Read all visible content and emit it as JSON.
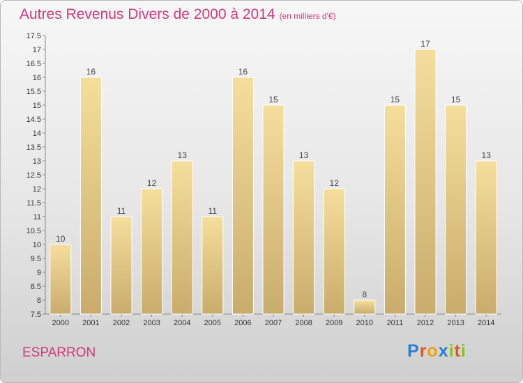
{
  "header": {
    "title": "Autres Revenus Divers de 2000 à 2014",
    "unit": "(en milliers d'€)"
  },
  "commune": "ESPARRON",
  "logo": {
    "letters": [
      "P",
      "r",
      "o",
      "x",
      "i",
      "t",
      "i"
    ],
    "colors": [
      "#2a7fd4",
      "#e8541b",
      "#f2a20e",
      "#2a7fd4",
      "#8bc21a",
      "#e8541b",
      "#8bc21a"
    ]
  },
  "chart_data": {
    "type": "bar",
    "categories": [
      "2000",
      "2001",
      "2002",
      "2003",
      "2004",
      "2005",
      "2006",
      "2007",
      "2008",
      "2009",
      "2010",
      "2011",
      "2012",
      "2013",
      "2014"
    ],
    "values": [
      10,
      16,
      11,
      12,
      13,
      11,
      16,
      15,
      13,
      12,
      8,
      15,
      17,
      15,
      13
    ],
    "ylim": [
      7.5,
      17.5
    ],
    "yticks": [
      "7.5",
      "8",
      "8.5",
      "9",
      "9.5",
      "10",
      "10.5",
      "11",
      "11.5",
      "12",
      "12.5",
      "13",
      "13.5",
      "14",
      "14.5",
      "15",
      "15.5",
      "16",
      "16.5",
      "17",
      "17.5"
    ],
    "grid": false,
    "bar_color": "#e8c878"
  }
}
